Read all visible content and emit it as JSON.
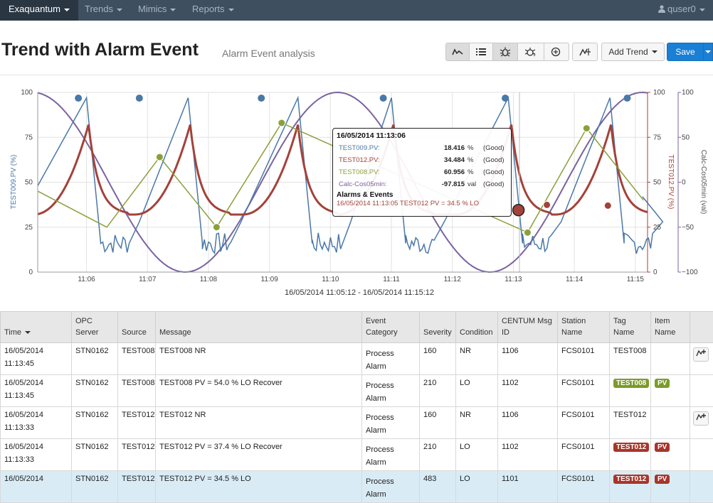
{
  "navbar": {
    "brand": "Exaquantum",
    "items": [
      "Trends",
      "Mimics",
      "Reports"
    ],
    "user": "quser0"
  },
  "header": {
    "title": "Trend with Alarm Event",
    "subtitle": "Alarm Event analysis",
    "add_trend_label": "Add Trend",
    "save_label": "Save"
  },
  "toolbar_icons": [
    "line-chart-icon",
    "list-icon",
    "bug-icon",
    "alarm-events-icon",
    "pointer-icon",
    "trend-cursor-icon"
  ],
  "chart_data": {
    "type": "line",
    "x_ticks": [
      "11:06",
      "11:07",
      "11:08",
      "11:09",
      "11:10",
      "11:11",
      "11:12",
      "11:13",
      "11:14",
      "11:15"
    ],
    "range_label": "16/05/2014 11:05:12 - 16/05/2014 11:15:12",
    "y_left": {
      "label": "TEST009.PV (%)",
      "ticks": [
        0,
        25,
        50,
        75,
        100
      ],
      "range": [
        0,
        100
      ]
    },
    "y_right1": {
      "label": "TEST012.PV (%)",
      "ticks": [
        0,
        25,
        50,
        75,
        100
      ],
      "range": [
        0,
        100
      ]
    },
    "y_right2": {
      "label": "Calc-Cos05min (val)",
      "ticks": [
        -100,
        -50,
        0,
        50,
        100
      ],
      "range": [
        -100,
        100
      ]
    },
    "series": [
      {
        "name": "TEST009.PV",
        "color": "#4a78a8",
        "unit": "%"
      },
      {
        "name": "TEST012.PV",
        "color": "#a3423a",
        "unit": "%"
      },
      {
        "name": "TEST008.PV",
        "color": "#8aa03a",
        "unit": "%"
      },
      {
        "name": "Calc-Cos05min",
        "color": "#7a63a0",
        "unit": "val"
      }
    ],
    "alarm_markers_test009": [
      {
        "time": "11:05:52",
        "value": 96
      },
      {
        "time": "11:06:52",
        "value": 96
      },
      {
        "time": "11:08:52",
        "value": 96
      },
      {
        "time": "11:10:52",
        "value": 96
      },
      {
        "time": "11:12:52",
        "value": 96
      },
      {
        "time": "11:14:52",
        "value": 96
      }
    ],
    "alarm_markers_test008": [
      {
        "time": "11:07:12",
        "value": 64
      },
      {
        "time": "11:08:08",
        "value": 25
      },
      {
        "time": "11:09:12",
        "value": 83
      },
      {
        "time": "11:13:14",
        "value": 22
      },
      {
        "time": "11:14:12",
        "value": 80
      }
    ],
    "alarm_markers_test012": [
      {
        "time": "11:13:05",
        "value": 34.5
      },
      {
        "time": "11:13:33",
        "value": 37.4
      },
      {
        "time": "11:14:33",
        "value": 37
      }
    ],
    "cursor_time": "11:13:06"
  },
  "tooltip": {
    "time": "16/05/2014 11:13:06",
    "rows": [
      {
        "name": "TEST009.PV:",
        "value": "18.416",
        "unit": "%",
        "quality": "(Good)",
        "color": "#4a78a8"
      },
      {
        "name": "TEST012.PV:",
        "value": "34.484",
        "unit": "%",
        "quality": "(Good)",
        "color": "#a3423a"
      },
      {
        "name": "TEST008.PV:",
        "value": "60.956",
        "unit": "%",
        "quality": "(Good)",
        "color": "#8aa03a"
      },
      {
        "name": "Calc-Cos05min:",
        "value": "-97.815",
        "unit": "val",
        "quality": "(Good)",
        "color": "#7a63a0"
      }
    ],
    "alarms_title": "Alarms & Events",
    "event": "16/05/2014 11:13:05 TEST012 PV = 34.5 % LO"
  },
  "table": {
    "columns": [
      "Time",
      "OPC Server",
      "Source",
      "Message",
      "Event Category",
      "Severity",
      "Condition",
      "CENTUM Msg ID",
      "Station Name",
      "Tag Name",
      "Item Name",
      ""
    ],
    "rows": [
      {
        "date": "16/05/2014",
        "time": "11:13:45",
        "server": "STN0162",
        "source": "TEST008",
        "message": "TEST008 NR",
        "category": "Process Alarm",
        "severity": "160",
        "condition": "NR",
        "msgid": "1106",
        "station": "FCS0101",
        "tag": "TEST008",
        "tag_badge": "",
        "item": "",
        "item_badge": "",
        "trend_btn": true
      },
      {
        "date": "16/05/2014",
        "time": "11:13:45",
        "server": "STN0162",
        "source": "TEST008",
        "message": "TEST008 PV = 54.0 % LO Recover",
        "category": "Process Alarm",
        "severity": "210",
        "condition": "LO",
        "msgid": "1102",
        "station": "FCS0101",
        "tag": "",
        "tag_badge": "TEST008",
        "item": "",
        "item_badge": "PV",
        "badge_color": "green",
        "trend_btn": false
      },
      {
        "date": "16/05/2014",
        "time": "11:13:33",
        "server": "STN0162",
        "source": "TEST012",
        "message": "TEST012 NR",
        "category": "Process Alarm",
        "severity": "160",
        "condition": "NR",
        "msgid": "1106",
        "station": "FCS0101",
        "tag": "TEST012",
        "tag_badge": "",
        "item": "",
        "item_badge": "",
        "trend_btn": true
      },
      {
        "date": "16/05/2014",
        "time": "11:13:33",
        "server": "STN0162",
        "source": "TEST012",
        "message": "TEST012 PV = 37.4 % LO Recover",
        "category": "Process Alarm",
        "severity": "210",
        "condition": "LO",
        "msgid": "1102",
        "station": "FCS0101",
        "tag": "",
        "tag_badge": "TEST012",
        "item": "",
        "item_badge": "PV",
        "badge_color": "red",
        "trend_btn": false
      },
      {
        "date": "16/05/2014",
        "time": "",
        "server": "STN0162",
        "source": "TEST012",
        "message": "TEST012 PV = 34.5 % LO",
        "category": "Process Alarm",
        "severity": "483",
        "condition": "LO",
        "msgid": "1101",
        "station": "FCS0101",
        "tag": "",
        "tag_badge": "TEST012",
        "item": "",
        "item_badge": "PV",
        "badge_color": "red",
        "trend_btn": false,
        "selected": true
      }
    ]
  }
}
